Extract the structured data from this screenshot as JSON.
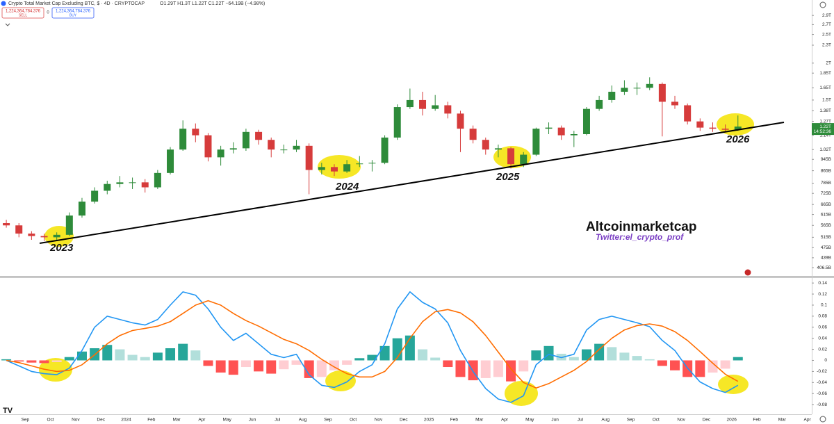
{
  "header": {
    "title": "Crypto Total Market Cap Excluding BTC, $ · 4D · CRYPTOCAP",
    "ohlc": "O1.29T H1.3T L1.22T C1.22T −64.19B (−4.98%)",
    "sell_price": "1,224,364,784,376",
    "sell": "SELL",
    "spread": "0",
    "buy_price": "1,224,364,784,376",
    "buy": "BUY"
  },
  "chart_data": [
    {
      "type": "candlestick",
      "log_scale": true,
      "grid": false,
      "up_color": "#2e8b3a",
      "down_color": "#d63b3b",
      "ylim": [
        379,
        3270
      ],
      "yticks": [
        {
          "value": 2900,
          "label": "2.9T"
        },
        {
          "value": 2700,
          "label": "2.7T"
        },
        {
          "value": 2500,
          "label": "2.5T"
        },
        {
          "value": 2300,
          "label": "2.3T"
        },
        {
          "value": 2000,
          "label": "2T"
        },
        {
          "value": 1850,
          "label": "1.85T"
        },
        {
          "value": 1650,
          "label": "1.65T"
        },
        {
          "value": 1500,
          "label": "1.5T"
        },
        {
          "value": 1380,
          "label": "1.38T"
        },
        {
          "value": 1270,
          "label": "1.27T"
        },
        {
          "value": 1140,
          "label": "1.14T"
        },
        {
          "value": 1020,
          "label": "1.02T"
        },
        {
          "value": 945,
          "label": "945B"
        },
        {
          "value": 865,
          "label": "865B"
        },
        {
          "value": 785,
          "label": "785B"
        },
        {
          "value": 725,
          "label": "725B"
        },
        {
          "value": 665,
          "label": "665B"
        },
        {
          "value": 615,
          "label": "615B"
        },
        {
          "value": 565,
          "label": "565B"
        },
        {
          "value": 515,
          "label": "515B"
        },
        {
          "value": 475,
          "label": "475B"
        },
        {
          "value": 439,
          "label": "439B"
        },
        {
          "value": 406.5,
          "label": "406.5B"
        }
      ],
      "open": [
        575,
        565,
        530,
        520,
        515,
        525,
        610,
        680,
        740,
        780,
        790,
        790,
        760,
        850,
        1020,
        1200,
        1140,
        960,
        1020,
        1030,
        1170,
        1100,
        1020,
        1020,
        1050,
        870,
        890,
        860,
        910,
        915,
        920,
        1120,
        1420,
        1500,
        1400,
        1440,
        1350,
        1200,
        1100,
        1020,
        1030,
        910,
        980,
        1200,
        1210,
        1140,
        1150,
        1400,
        1500,
        1600,
        1650,
        1650,
        1700,
        1480,
        1440,
        1270,
        1210,
        1200,
        1190,
        null,
        null,
        null,
        null,
        null,
        null
      ],
      "high": [
        590,
        575,
        540,
        530,
        535,
        625,
        700,
        760,
        800,
        830,
        820,
        810,
        870,
        1040,
        1280,
        1250,
        1160,
        1050,
        1080,
        1200,
        1190,
        1120,
        1060,
        1100,
        1070,
        920,
        910,
        940,
        970,
        940,
        1140,
        1450,
        1640,
        1600,
        1560,
        1480,
        1380,
        1230,
        1120,
        1060,
        1040,
        1000,
        1210,
        1260,
        1230,
        1180,
        1420,
        1550,
        1680,
        1750,
        1720,
        1790,
        1720,
        1550,
        1460,
        1300,
        1260,
        1240,
        1330,
        null,
        null,
        null,
        null,
        null,
        null
      ],
      "low": [
        555,
        515,
        505,
        500,
        505,
        520,
        600,
        670,
        720,
        760,
        750,
        730,
        750,
        840,
        1010,
        1080,
        930,
        900,
        990,
        1010,
        1060,
        960,
        990,
        1000,
        720,
        840,
        830,
        850,
        890,
        860,
        910,
        1100,
        1400,
        1330,
        1380,
        1300,
        1000,
        1070,
        980,
        960,
        880,
        890,
        970,
        1150,
        1100,
        1040,
        1140,
        1380,
        1470,
        1560,
        1560,
        1620,
        1130,
        1400,
        1240,
        1180,
        1170,
        1170,
        1180,
        null,
        null,
        null,
        null,
        null,
        null
      ],
      "close": [
        565,
        530,
        520,
        515,
        525,
        610,
        680,
        740,
        780,
        790,
        790,
        760,
        850,
        1020,
        1200,
        1140,
        960,
        1020,
        1030,
        1170,
        1100,
        1020,
        1020,
        1050,
        870,
        890,
        860,
        910,
        915,
        920,
        1120,
        1420,
        1500,
        1400,
        1440,
        1350,
        1200,
        1100,
        1020,
        1030,
        910,
        980,
        1200,
        1210,
        1140,
        1150,
        1400,
        1500,
        1600,
        1650,
        1650,
        1700,
        1480,
        1440,
        1270,
        1210,
        1200,
        1190,
        1220,
        null,
        null,
        null,
        null,
        null,
        null
      ],
      "last_price_label": "1.22T",
      "countdown": "14:52:36",
      "annotations": [
        "2023",
        "2024",
        "2025",
        "2026",
        "Altcoinmarketcap",
        "Twitter:el_crypto_prof"
      ]
    },
    {
      "type": "macd",
      "grid": false,
      "categories": [
        null,
        null,
        "Sep",
        null,
        "Oct",
        null,
        "Nov",
        null,
        "Dec",
        null,
        "2024",
        null,
        "Feb",
        null,
        "Mar",
        null,
        "Apr",
        null,
        "May",
        null,
        "Jun",
        null,
        "Jul",
        null,
        "Aug",
        null,
        "Sep",
        null,
        "Oct",
        null,
        "Nov",
        null,
        "Dec",
        null,
        "2025",
        null,
        "Feb",
        null,
        "Mar",
        null,
        "Apr",
        null,
        "May",
        null,
        "Jun",
        null,
        "Jul",
        null,
        "Aug",
        null,
        "Sep",
        null,
        "Oct",
        null,
        "Nov",
        null,
        "Dec",
        null,
        "2026",
        null,
        "Feb",
        null,
        "Mar",
        null,
        "Apr"
      ],
      "ylim": [
        -0.0975,
        0.149
      ],
      "yticks": [
        0.14,
        0.12,
        0.1,
        0.08,
        0.06,
        0.04,
        0.02,
        0,
        -0.02,
        -0.04,
        -0.06,
        -0.08
      ],
      "histogram": {
        "colors": [
          "#26a69a",
          "#b2dfdb",
          "#ffcdd2",
          "#ff5252"
        ],
        "values": [
          0.002,
          -0.002,
          -0.004,
          -0.005,
          -0.003,
          0.006,
          0.016,
          0.022,
          0.028,
          0.02,
          0.01,
          0.006,
          0.014,
          0.022,
          0.03,
          0.018,
          -0.01,
          -0.022,
          -0.026,
          -0.012,
          -0.02,
          -0.024,
          -0.016,
          -0.008,
          -0.032,
          -0.03,
          -0.018,
          -0.008,
          0.004,
          0.01,
          0.026,
          0.04,
          0.045,
          0.02,
          0.005,
          -0.012,
          -0.03,
          -0.036,
          -0.032,
          -0.03,
          -0.038,
          -0.02,
          0.018,
          0.026,
          0.012,
          0.006,
          0.02,
          0.03,
          0.024,
          0.014,
          0.008,
          0.002,
          -0.01,
          -0.018,
          -0.03,
          -0.03,
          -0.022,
          -0.015,
          0.006,
          null,
          null,
          null,
          null,
          null,
          null
        ]
      },
      "series": [
        {
          "color": "#2196f3",
          "values": [
            0,
            -0.01,
            -0.02,
            -0.024,
            -0.026,
            -0.014,
            0.018,
            0.06,
            0.08,
            0.074,
            0.068,
            0.064,
            0.074,
            0.1,
            0.124,
            0.118,
            0.093,
            0.06,
            0.036,
            0.049,
            0.03,
            0.011,
            0.005,
            0.011,
            -0.026,
            -0.045,
            -0.049,
            -0.039,
            -0.02,
            -0.008,
            0.03,
            0.093,
            0.124,
            0.105,
            0.093,
            0.068,
            0.018,
            -0.02,
            -0.051,
            -0.07,
            -0.076,
            -0.064,
            -0.008,
            0.011,
            0.005,
            0.011,
            0.055,
            0.074,
            0.08,
            0.074,
            0.068,
            0.061,
            0.036,
            0.018,
            -0.014,
            -0.039,
            -0.051,
            -0.058,
            -0.045,
            null,
            null,
            null,
            null,
            null,
            null
          ]
        },
        {
          "color": "#ff6d00",
          "values": [
            0,
            -0.004,
            -0.01,
            -0.016,
            -0.02,
            -0.018,
            -0.008,
            0.01,
            0.03,
            0.045,
            0.054,
            0.058,
            0.062,
            0.07,
            0.085,
            0.1,
            0.108,
            0.1,
            0.085,
            0.072,
            0.062,
            0.05,
            0.038,
            0.03,
            0.018,
            0.002,
            -0.012,
            -0.024,
            -0.03,
            -0.03,
            -0.02,
            0.005,
            0.04,
            0.07,
            0.088,
            0.092,
            0.086,
            0.07,
            0.045,
            0.015,
            -0.015,
            -0.04,
            -0.05,
            -0.042,
            -0.03,
            -0.018,
            -0.002,
            0.02,
            0.04,
            0.055,
            0.063,
            0.066,
            0.062,
            0.052,
            0.036,
            0.016,
            -0.005,
            -0.025,
            -0.038,
            null,
            null,
            null,
            null,
            null,
            null
          ]
        }
      ]
    }
  ]
}
